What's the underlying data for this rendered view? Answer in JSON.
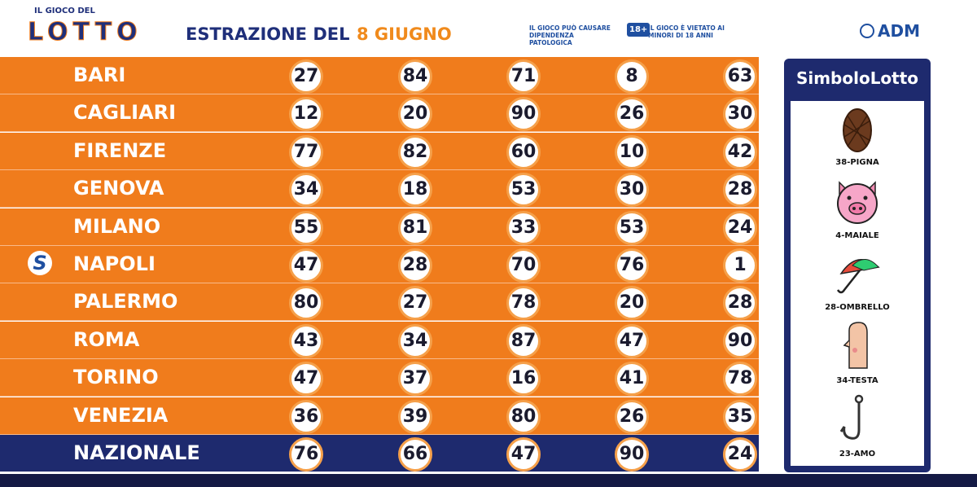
{
  "header": {
    "brand_small": "IL GIOCO DEL",
    "brand": "LOTTO",
    "title": "ESTRAZIONE DEL",
    "date": "8 GIUGNO",
    "notice_1": "IL GIOCO PUÒ CAUSARE DIPENDENZA PATOLOGICA",
    "age_badge": "18+",
    "notice_2": "IL GIOCO È VIETATO AI MINORI DI 18 ANNI",
    "authority": "ADM"
  },
  "table": {
    "rows": [
      {
        "city": "BARI",
        "numbers": [
          27,
          84,
          71,
          8,
          63
        ]
      },
      {
        "city": "CAGLIARI",
        "numbers": [
          12,
          20,
          90,
          26,
          30
        ]
      },
      {
        "city": "FIRENZE",
        "numbers": [
          77,
          82,
          60,
          10,
          42
        ]
      },
      {
        "city": "GENOVA",
        "numbers": [
          34,
          18,
          53,
          30,
          28
        ]
      },
      {
        "city": "MILANO",
        "numbers": [
          55,
          81,
          33,
          53,
          24
        ]
      },
      {
        "city": "NAPOLI",
        "numbers": [
          47,
          28,
          70,
          76,
          1
        ],
        "marker": "S"
      },
      {
        "city": "PALERMO",
        "numbers": [
          80,
          27,
          78,
          20,
          28
        ]
      },
      {
        "city": "ROMA",
        "numbers": [
          43,
          34,
          87,
          47,
          90
        ]
      },
      {
        "city": "TORINO",
        "numbers": [
          47,
          37,
          16,
          41,
          78
        ]
      },
      {
        "city": "VENEZIA",
        "numbers": [
          36,
          39,
          80,
          26,
          35
        ]
      },
      {
        "city": "NAZIONALE",
        "numbers": [
          76,
          66,
          47,
          90,
          24
        ]
      }
    ]
  },
  "simbolotto": {
    "title": "SimboloLotto",
    "items": [
      "38-PIGNA",
      "4-MAIALE",
      "28-OMBRELLO",
      "34-TESTA",
      "23-AMO"
    ]
  }
}
